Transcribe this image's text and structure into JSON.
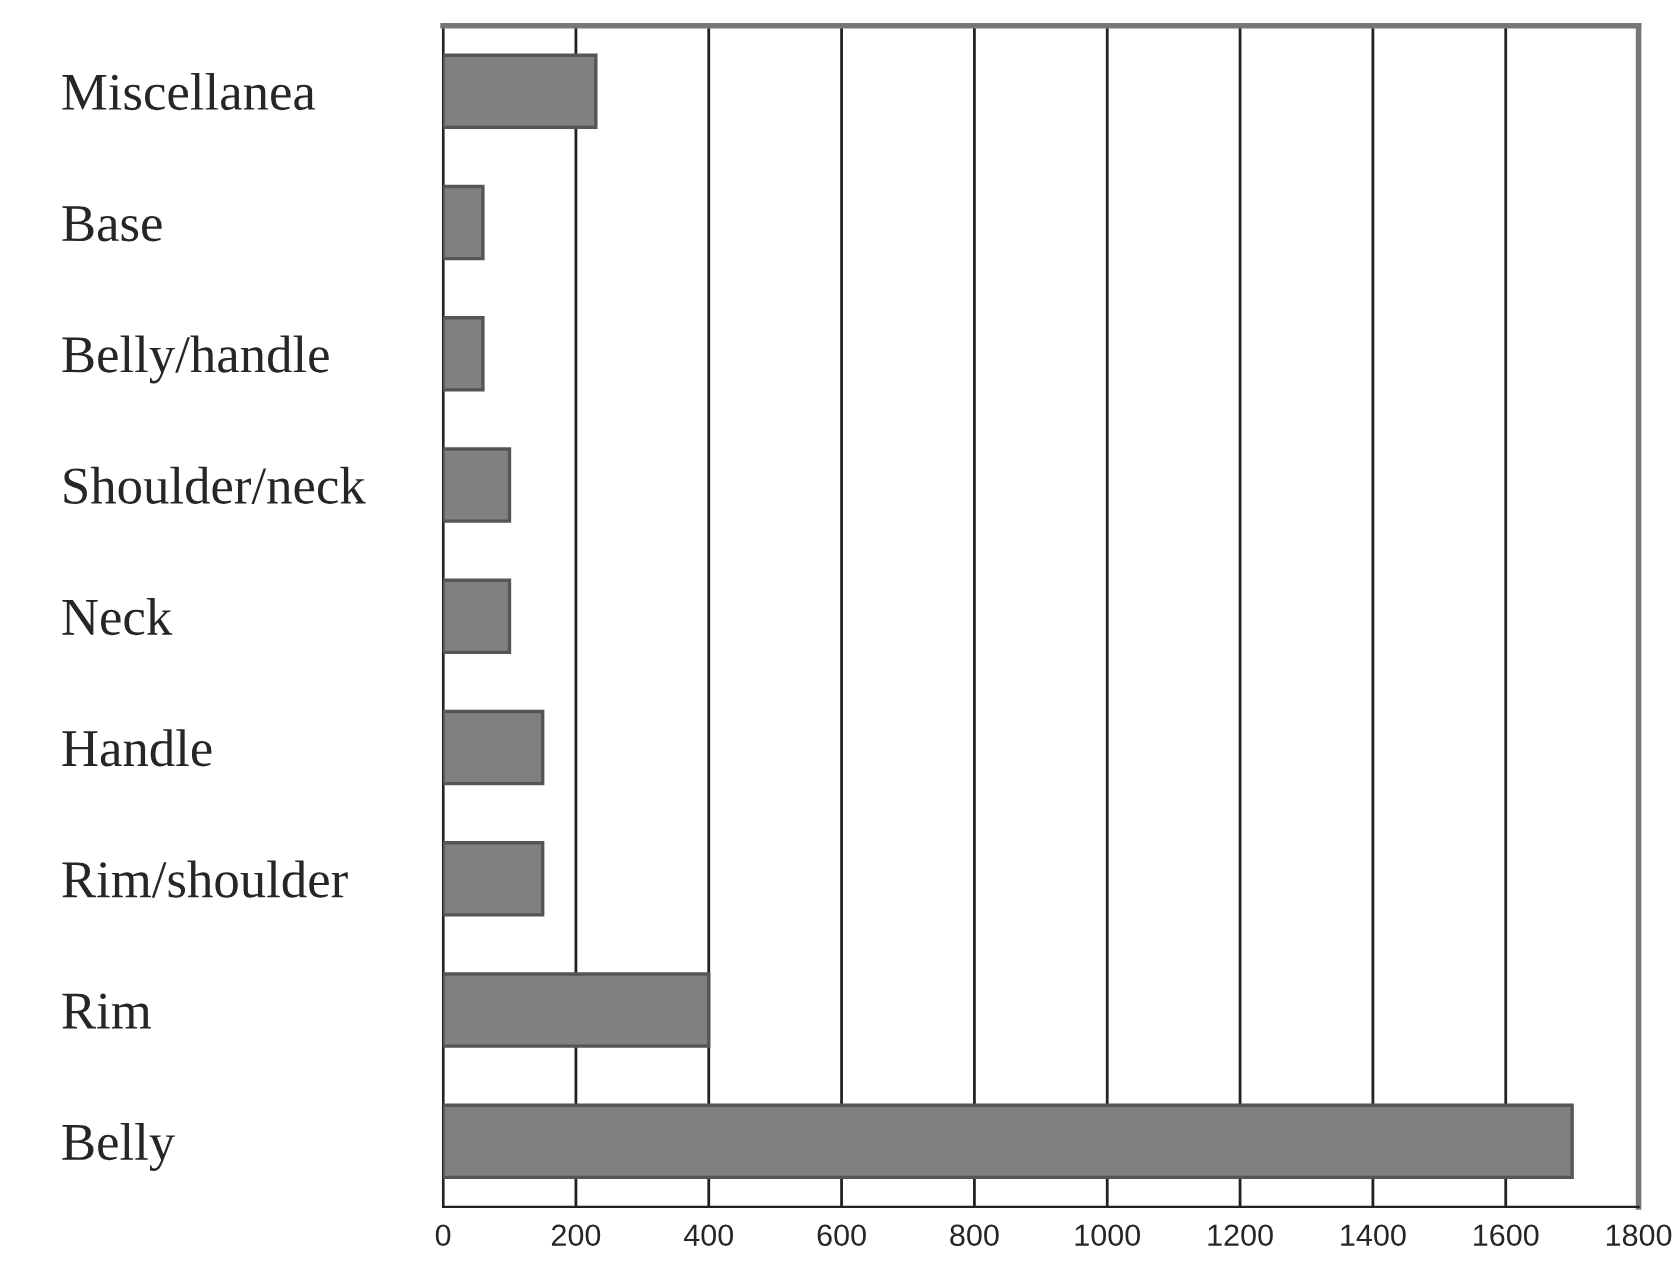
{
  "chart_data": {
    "type": "bar",
    "orientation": "horizontal",
    "categories": [
      "Miscellanea",
      "Base",
      "Belly/handle",
      "Shoulder/neck",
      "Neck",
      "Handle",
      "Rim/shoulder",
      "Rim",
      "Belly"
    ],
    "values": [
      230,
      60,
      60,
      100,
      100,
      150,
      150,
      400,
      1700
    ],
    "color": "#808080",
    "xlim": [
      0,
      1800
    ],
    "xticks": [
      0,
      200,
      400,
      600,
      800,
      1000,
      1200,
      1400,
      1600,
      1800
    ],
    "grid": "x"
  }
}
